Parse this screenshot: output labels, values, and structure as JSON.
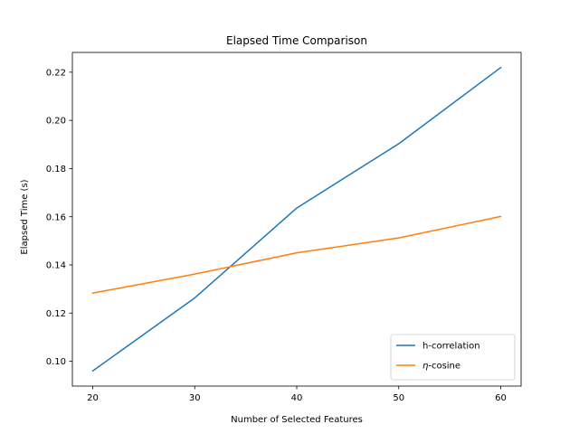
{
  "chart_data": {
    "type": "line",
    "title": "Elapsed Time Comparison",
    "xlabel": "Number of Selected Features",
    "ylabel": "Elapsed Time (s)",
    "x": [
      20,
      30,
      40,
      50,
      60
    ],
    "xticks": [
      "20",
      "30",
      "40",
      "50",
      "60"
    ],
    "yticks": [
      "0.10",
      "0.12",
      "0.14",
      "0.16",
      "0.18",
      "0.20",
      "0.22"
    ],
    "xlim": [
      18,
      62
    ],
    "ylim": [
      0.0897,
      0.2282
    ],
    "grid": false,
    "legend_position": "lower-right",
    "series": [
      {
        "name": "h-correlation",
        "name_prefix": "h",
        "name_suffix": "-correlation",
        "color": "#1f77b4",
        "values": [
          0.096,
          0.1263,
          0.1636,
          0.1903,
          0.2219
        ]
      },
      {
        "name": "η-cosine",
        "name_prefix": "η",
        "name_suffix": "-cosine",
        "color": "#ff7f0e",
        "values": [
          0.1283,
          0.1362,
          0.145,
          0.1512,
          0.1601
        ]
      }
    ]
  }
}
